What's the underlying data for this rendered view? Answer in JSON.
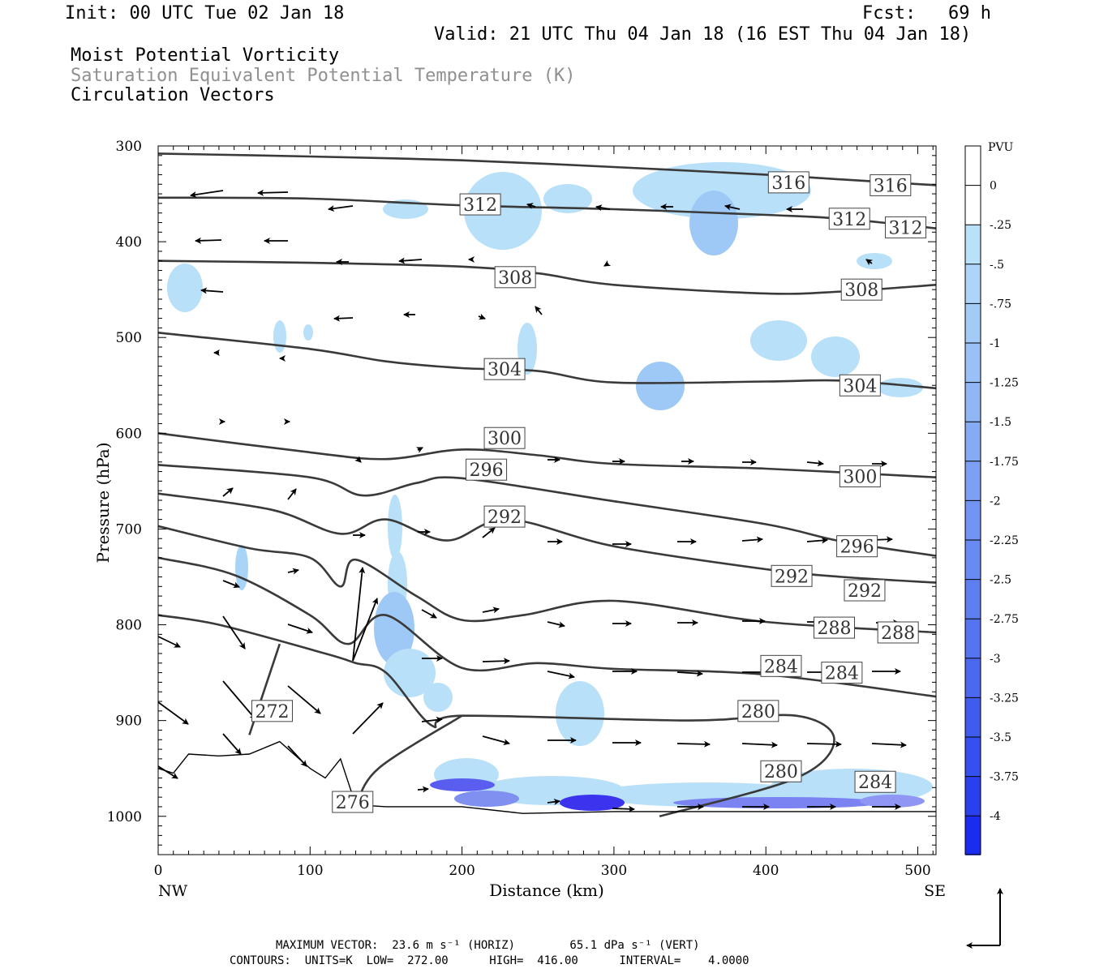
{
  "header": {
    "init": "Init: 00 UTC Tue 02 Jan 18",
    "fcst": "Fcst:   69 h",
    "valid": "Valid: 21 UTC Thu 04 Jan 18 (16 EST Thu 04 Jan 18)"
  },
  "fields": {
    "line1": "Moist Potential Vorticity",
    "line2": "Saturation Equivalent Potential Temperature (K)",
    "line3": "Circulation Vectors"
  },
  "colors": {
    "field2_text": "#909090",
    "contour": "#3a3a3a",
    "pv_light": "#b8e0f8",
    "pv_strong": "#0a00ff"
  },
  "footer": {
    "max_vector": "MAXIMUM VECTOR:  23.6 m s⁻¹ (HORIZ)        65.1 dPa s⁻¹ (VERT)",
    "contours": "CONTOURS:  UNITS=K  LOW=  272.00      HIGH=  416.00      INTERVAL=    4.0000"
  },
  "chart_data": {
    "type": "cross-section",
    "xlabel": "Distance (km)",
    "ylabel": "Pressure (hPa)",
    "xlim": [
      0,
      512
    ],
    "ylim": [
      1040,
      300
    ],
    "x_ticks": [
      "0",
      "100",
      "200",
      "300",
      "400",
      "500"
    ],
    "y_ticks": [
      "300",
      "400",
      "500",
      "600",
      "700",
      "800",
      "900",
      "1000"
    ],
    "x_end_labels": {
      "left": "NW",
      "right": "SE"
    },
    "grid": false,
    "colorbar": {
      "unit": "PVU",
      "levels": [
        "0",
        "-.25",
        "-.5",
        "-.75",
        "-1",
        "-1.25",
        "-1.5",
        "-1.75",
        "-2",
        "-2.25",
        "-2.5",
        "-2.75",
        "-3",
        "-3.25",
        "-3.5",
        "-3.75",
        "-4"
      ]
    },
    "theta_contours": [
      {
        "level": 316,
        "points": [
          [
            0,
            308
          ],
          [
            100,
            311
          ],
          [
            200,
            315
          ],
          [
            300,
            322
          ],
          [
            400,
            330
          ],
          [
            450,
            335
          ],
          [
            512,
            341
          ]
        ],
        "labels": [
          [
            415,
            338
          ],
          [
            482,
            341
          ]
        ]
      },
      {
        "level": 312,
        "points": [
          [
            0,
            354
          ],
          [
            100,
            355
          ],
          [
            200,
            362
          ],
          [
            300,
            366
          ],
          [
            400,
            372
          ],
          [
            450,
            376
          ],
          [
            512,
            386
          ]
        ],
        "labels": [
          [
            212,
            361
          ],
          [
            455,
            376
          ],
          [
            492,
            385
          ]
        ]
      },
      {
        "level": 308,
        "points": [
          [
            0,
            420
          ],
          [
            100,
            422
          ],
          [
            200,
            426
          ],
          [
            250,
            433
          ],
          [
            300,
            445
          ],
          [
            400,
            454
          ],
          [
            450,
            452
          ],
          [
            512,
            445
          ]
        ],
        "labels": [
          [
            235,
            437
          ],
          [
            463,
            450
          ]
        ]
      },
      {
        "level": 304,
        "points": [
          [
            0,
            495
          ],
          [
            100,
            512
          ],
          [
            150,
            525
          ],
          [
            200,
            532
          ],
          [
            250,
            535
          ],
          [
            300,
            547
          ],
          [
            400,
            546
          ],
          [
            450,
            545
          ],
          [
            512,
            553
          ]
        ],
        "labels": [
          [
            228,
            533
          ],
          [
            462,
            550
          ]
        ]
      },
      {
        "level": 300,
        "points": [
          [
            0,
            600
          ],
          [
            100,
            620
          ],
          [
            150,
            627
          ],
          [
            200,
            617
          ],
          [
            250,
            623
          ],
          [
            300,
            632
          ],
          [
            400,
            637
          ],
          [
            512,
            646
          ]
        ],
        "labels": [
          [
            228,
            605
          ],
          [
            462,
            645
          ]
        ]
      },
      {
        "level": 296,
        "points": [
          [
            0,
            633
          ],
          [
            100,
            646
          ],
          [
            135,
            665
          ],
          [
            170,
            652
          ],
          [
            200,
            647
          ],
          [
            300,
            671
          ],
          [
            400,
            695
          ],
          [
            450,
            713
          ],
          [
            512,
            728
          ]
        ],
        "labels": [
          [
            216,
            638
          ],
          [
            460,
            718
          ]
        ]
      },
      {
        "level": 292,
        "points": [
          [
            0,
            663
          ],
          [
            75,
            680
          ],
          [
            120,
            705
          ],
          [
            150,
            690
          ],
          [
            190,
            712
          ],
          [
            230,
            690
          ],
          [
            300,
            718
          ],
          [
            400,
            742
          ],
          [
            450,
            750
          ],
          [
            512,
            756
          ]
        ],
        "labels": [
          [
            228,
            687
          ],
          [
            417,
            749
          ],
          [
            465,
            764
          ]
        ]
      },
      {
        "level": 288,
        "points": [
          [
            0,
            697
          ],
          [
            60,
            720
          ],
          [
            100,
            730
          ],
          [
            120,
            760
          ],
          [
            130,
            732
          ],
          [
            170,
            770
          ],
          [
            200,
            795
          ],
          [
            240,
            790
          ],
          [
            300,
            775
          ],
          [
            400,
            797
          ],
          [
            512,
            808
          ]
        ],
        "labels": [
          [
            445,
            803
          ],
          [
            487,
            808
          ]
        ]
      },
      {
        "level": 284,
        "points": [
          [
            0,
            730
          ],
          [
            50,
            748
          ],
          [
            100,
            790
          ],
          [
            125,
            820
          ],
          [
            150,
            790
          ],
          [
            200,
            845
          ],
          [
            250,
            840
          ],
          [
            300,
            846
          ],
          [
            400,
            852
          ],
          [
            512,
            875
          ]
        ],
        "labels": [
          [
            410,
            843
          ],
          [
            450,
            850
          ],
          [
            472,
            964
          ]
        ]
      },
      {
        "level": 280,
        "points": [
          [
            0,
            790
          ],
          [
            40,
            800
          ],
          [
            110,
            830
          ],
          [
            130,
            840
          ],
          [
            150,
            850
          ],
          [
            180,
            905
          ],
          [
            200,
            895
          ],
          [
            350,
            900
          ],
          [
            420,
            895
          ],
          [
            445,
            920
          ],
          [
            420,
            960
          ],
          [
            330,
            1000
          ]
        ],
        "labels": [
          [
            395,
            890
          ],
          [
            410,
            953
          ]
        ]
      },
      {
        "level": 272,
        "points": [
          [
            60,
            915
          ],
          [
            80,
            820
          ]
        ],
        "labels": [
          [
            75,
            890
          ]
        ]
      },
      {
        "level": 276,
        "points": [
          [
            130,
            990
          ],
          [
            145,
            950
          ],
          [
            200,
            895
          ]
        ],
        "labels": [
          [
            128,
            985
          ]
        ]
      }
    ],
    "terrain": [
      [
        0,
        950
      ],
      [
        10,
        955
      ],
      [
        20,
        935
      ],
      [
        40,
        937
      ],
      [
        60,
        935
      ],
      [
        80,
        922
      ],
      [
        100,
        950
      ],
      [
        110,
        960
      ],
      [
        120,
        940
      ],
      [
        130,
        988
      ],
      [
        150,
        990
      ],
      [
        180,
        990
      ],
      [
        200,
        990
      ],
      [
        240,
        997
      ],
      [
        300,
        995
      ],
      [
        400,
        995
      ],
      [
        512,
        995
      ]
    ]
  }
}
